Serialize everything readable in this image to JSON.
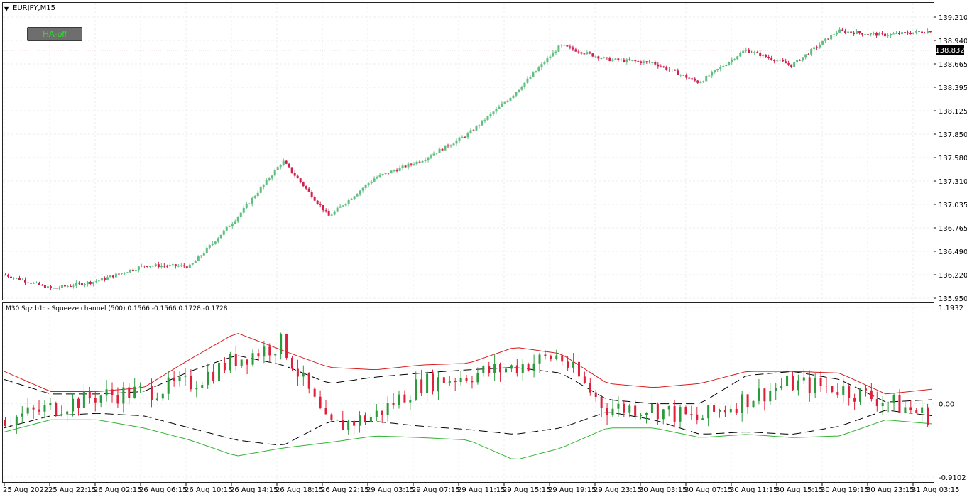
{
  "symbol_label": "EURJPY,M15",
  "ha_button_label": "HA-off",
  "indicator_label": "M30 Sqz b1: - Squeeze channel (500) 0.1566 -0.1566 0.1728 -0.1728",
  "current_price": "138.832",
  "colors": {
    "bull": "#5fbf7f",
    "bear": "#d0204f",
    "upper": "#d81c1c",
    "lower": "#2fb52f",
    "mid": "#000000"
  },
  "price_axis": [
    "139.210",
    "138.940",
    "138.665",
    "138.395",
    "138.125",
    "137.850",
    "137.580",
    "137.310",
    "137.035",
    "136.765",
    "136.490",
    "136.220",
    "135.950"
  ],
  "indicator_axis": [
    "1.1932",
    "0.00",
    "-0.9102"
  ],
  "time_axis": [
    "25 Aug 2022",
    "25 Aug 22:15",
    "26 Aug 02:15",
    "26 Aug 06:15",
    "26 Aug 10:15",
    "26 Aug 14:15",
    "26 Aug 18:15",
    "26 Aug 22:15",
    "29 Aug 03:15",
    "29 Aug 07:15",
    "29 Aug 11:15",
    "29 Aug 15:15",
    "29 Aug 19:15",
    "29 Aug 23:15",
    "30 Aug 03:15",
    "30 Aug 07:15",
    "30 Aug 11:15",
    "30 Aug 15:15",
    "30 Aug 19:15",
    "30 Aug 23:15",
    "31 Aug 03:15"
  ],
  "chart_data": [
    {
      "type": "line",
      "title": "EURJPY,M15",
      "ylim": [
        135.95,
        139.21
      ],
      "series": [
        {
          "x": [
            "25 Aug 2022",
            "25 Aug 22:15",
            "26 Aug 02:15",
            "26 Aug 06:15",
            "26 Aug 10:15",
            "26 Aug 14:15",
            "26 Aug 18:15",
            "26 Aug 22:15",
            "29 Aug 03:15",
            "29 Aug 07:15",
            "29 Aug 11:15",
            "29 Aug 15:15",
            "29 Aug 19:15",
            "29 Aug 23:15",
            "30 Aug 03:15",
            "30 Aug 07:15",
            "30 Aug 11:15",
            "30 Aug 15:15",
            "30 Aug 19:15",
            "30 Aug 23:15",
            "31 Aug 03:15"
          ],
          "values": [
            136.22,
            136.06,
            136.15,
            136.33,
            136.32,
            136.88,
            137.54,
            136.9,
            137.35,
            137.55,
            137.85,
            138.32,
            138.88,
            138.72,
            138.68,
            138.45,
            138.83,
            138.65,
            139.05,
            139.0,
            139.05
          ]
        }
      ]
    },
    {
      "type": "line",
      "title": "M30 Sqz b1: - Squeeze channel (500) 0.1566 -0.1566 0.1728 -0.1728",
      "ylim": [
        -0.9102,
        1.1932
      ],
      "series": [
        {
          "x": [
            "25 Aug 2022",
            "25 Aug 22:15",
            "26 Aug 02:15",
            "26 Aug 06:15",
            "26 Aug 10:15",
            "26 Aug 14:15",
            "26 Aug 18:15",
            "26 Aug 22:15",
            "29 Aug 03:15",
            "29 Aug 07:15",
            "29 Aug 11:15",
            "29 Aug 15:15",
            "29 Aug 19:15",
            "29 Aug 23:15",
            "30 Aug 03:15",
            "30 Aug 07:15",
            "30 Aug 11:15",
            "30 Aug 15:15",
            "30 Aug 19:15",
            "30 Aug 23:15",
            "31 Aug 03:15"
          ],
          "values": [
            -0.2,
            -0.05,
            0.1,
            0.15,
            0.25,
            0.55,
            0.75,
            -0.3,
            -0.15,
            0.25,
            0.35,
            0.45,
            0.6,
            -0.05,
            -0.05,
            -0.2,
            0.05,
            0.25,
            0.2,
            0.05,
            -0.15
          ]
        },
        {
          "x": [
            "25 Aug 2022",
            "25 Aug 22:15",
            "26 Aug 02:15",
            "26 Aug 06:15",
            "26 Aug 10:15",
            "26 Aug 14:15",
            "26 Aug 18:15",
            "26 Aug 22:15",
            "29 Aug 03:15",
            "29 Aug 07:15",
            "29 Aug 11:15",
            "29 Aug 15:15",
            "29 Aug 19:15",
            "29 Aug 23:15",
            "30 Aug 03:15",
            "30 Aug 07:15",
            "30 Aug 11:15",
            "30 Aug 15:15",
            "30 Aug 19:15",
            "30 Aug 23:15",
            "31 Aug 03:15"
          ],
          "values": [
            0.4,
            0.15,
            0.15,
            0.2,
            0.55,
            0.88,
            0.66,
            0.45,
            0.42,
            0.48,
            0.5,
            0.7,
            0.62,
            0.25,
            0.2,
            0.25,
            0.4,
            0.4,
            0.38,
            0.12,
            0.18
          ]
        },
        {
          "x": [
            "25 Aug 2022",
            "25 Aug 22:15",
            "26 Aug 02:15",
            "26 Aug 06:15",
            "26 Aug 10:15",
            "26 Aug 14:15",
            "26 Aug 18:15",
            "26 Aug 22:15",
            "29 Aug 03:15",
            "29 Aug 07:15",
            "29 Aug 11:15",
            "29 Aug 15:15",
            "29 Aug 19:15",
            "29 Aug 23:15",
            "30 Aug 03:15",
            "30 Aug 07:15",
            "30 Aug 11:15",
            "30 Aug 15:15",
            "30 Aug 19:15",
            "30 Aug 23:15",
            "31 Aug 03:15"
          ],
          "values": [
            0.3,
            0.12,
            0.12,
            0.15,
            0.4,
            0.6,
            0.48,
            0.25,
            0.33,
            0.38,
            0.42,
            0.45,
            0.38,
            0.05,
            0.0,
            0.0,
            0.35,
            0.4,
            0.3,
            0.02,
            0.05
          ]
        },
        {
          "x": [
            "25 Aug 2022",
            "25 Aug 22:15",
            "26 Aug 02:15",
            "26 Aug 06:15",
            "26 Aug 10:15",
            "26 Aug 14:15",
            "26 Aug 18:15",
            "26 Aug 22:15",
            "29 Aug 03:15",
            "29 Aug 07:15",
            "29 Aug 11:15",
            "29 Aug 15:15",
            "29 Aug 19:15",
            "29 Aug 23:15",
            "30 Aug 03:15",
            "30 Aug 07:15",
            "30 Aug 11:15",
            "30 Aug 15:15",
            "30 Aug 19:15",
            "30 Aug 23:15",
            "31 Aug 03:15"
          ],
          "values": [
            -0.35,
            -0.2,
            -0.2,
            -0.3,
            -0.45,
            -0.65,
            -0.55,
            -0.48,
            -0.4,
            -0.42,
            -0.45,
            -0.7,
            -0.55,
            -0.3,
            -0.3,
            -0.42,
            -0.38,
            -0.42,
            -0.4,
            -0.2,
            -0.25
          ]
        },
        {
          "x": [
            "25 Aug 2022",
            "25 Aug 22:15",
            "26 Aug 02:15",
            "26 Aug 06:15",
            "26 Aug 10:15",
            "26 Aug 14:15",
            "26 Aug 18:15",
            "26 Aug 22:15",
            "29 Aug 03:15",
            "29 Aug 07:15",
            "29 Aug 11:15",
            "29 Aug 15:15",
            "29 Aug 19:15",
            "29 Aug 23:15",
            "30 Aug 03:15",
            "30 Aug 07:15",
            "30 Aug 11:15",
            "30 Aug 15:15",
            "30 Aug 19:15",
            "30 Aug 23:15",
            "31 Aug 03:15"
          ],
          "values": [
            -0.3,
            -0.15,
            -0.12,
            -0.15,
            -0.3,
            -0.45,
            -0.52,
            -0.22,
            -0.22,
            -0.28,
            -0.32,
            -0.38,
            -0.3,
            -0.1,
            -0.2,
            -0.38,
            -0.35,
            -0.38,
            -0.28,
            -0.08,
            -0.15
          ]
        }
      ]
    }
  ]
}
